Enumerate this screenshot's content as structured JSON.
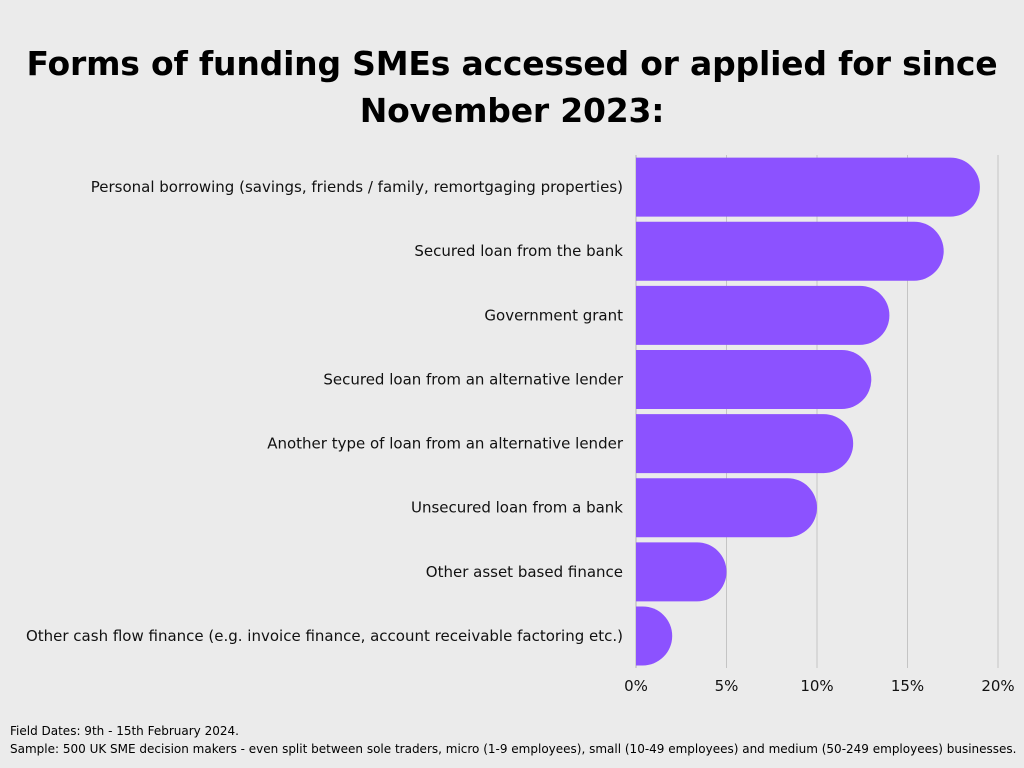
{
  "chart_data": {
    "type": "bar",
    "orientation": "horizontal",
    "title": "Forms of funding SMEs accessed or applied for since November 2023:",
    "categories": [
      "Personal borrowing (savings, friends / family, remortgaging properties)",
      "Secured loan from the bank",
      "Government grant",
      "Secured loan from an alternative lender",
      "Another type of loan from an alternative lender",
      "Unsecured loan from a bank",
      "Other asset based finance",
      "Other cash flow finance (e.g. invoice finance, account receivable factoring etc.)"
    ],
    "values": [
      19,
      17,
      14,
      13,
      12,
      10,
      5,
      2
    ],
    "unit": "%",
    "xlim": [
      0,
      20
    ],
    "xticks": [
      "0%",
      "5%",
      "10%",
      "15%",
      "20%"
    ],
    "xtick_values": [
      0,
      5,
      10,
      15,
      20
    ],
    "grid": true,
    "bar_color": "#8c52ff"
  },
  "footnotes": {
    "field_dates": "Field Dates: 9th - 15th February 2024.",
    "sample": "Sample: 500 UK SME decision makers - even split between sole traders, micro (1-9 employees), small (10-49 employees) and medium (50-249 employees) businesses."
  }
}
